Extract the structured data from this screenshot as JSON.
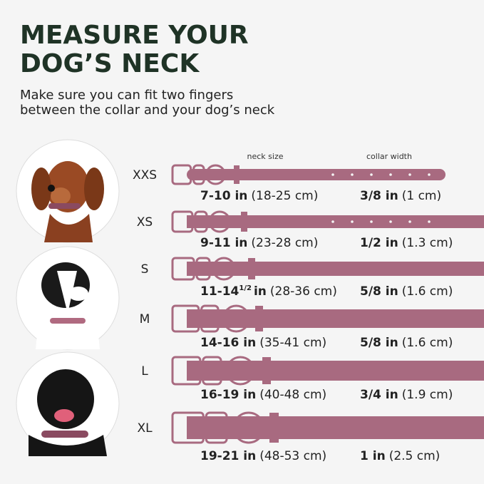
{
  "header": {
    "title_lines": [
      "MEASURE YOUR",
      "DOG’S  NECK"
    ],
    "subtitle_lines": [
      "Make sure you can fit two fingers",
      "between the collar and your dog’s neck"
    ]
  },
  "columns": {
    "neck": "neck size",
    "width": "collar width"
  },
  "sizes": [
    {
      "size": "XXS",
      "neck_in": "7-10 in",
      "neck_cm": "(18-25 cm)",
      "width_in": "3/8 in",
      "width_cm": "(1 cm)"
    },
    {
      "size": "XS",
      "neck_in": "9-11 in",
      "neck_cm": "(23-28 cm)",
      "width_in": "1/2 in",
      "width_cm": "(1.3 cm)"
    },
    {
      "size": "S",
      "neck_in": "11-14",
      "neck_fraction": "1/2",
      "neck_unit": "in",
      "neck_cm": "(28-36 cm)",
      "width_in": "5/8 in",
      "width_cm": "(1.6 cm)"
    },
    {
      "size": "M",
      "neck_in": "14-16 in",
      "neck_cm": "(35-41 cm)",
      "width_in": "5/8 in",
      "width_cm": "(1.6 cm)"
    },
    {
      "size": "L",
      "neck_in": "16-19 in",
      "neck_cm": "(40-48 cm)",
      "width_in": "3/4 in",
      "width_cm": "(1.9 cm)"
    },
    {
      "size": "XL",
      "neck_in": "19-21 in",
      "neck_cm": "(48-53 cm)",
      "width_in": "1 in",
      "width_cm": "(2.5 cm)"
    }
  ]
}
